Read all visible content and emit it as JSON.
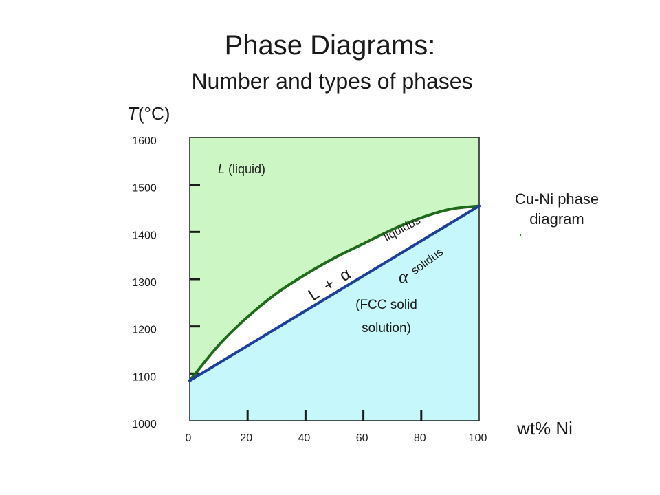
{
  "slide": {
    "title": "Phase Diagrams:",
    "subtitle": "Number and types of phases",
    "y_axis_label_var": "T",
    "y_axis_label_unit": "(°C)",
    "x_axis_label": "wt% Ni",
    "caption": "Cu-Ni phase diagram"
  },
  "phase_labels": {
    "liquid_symbol": "L",
    "liquid_text": "(liquid)",
    "two_phase": "L  +  α",
    "alpha_symbol": "α",
    "solidus": "solidus",
    "liquidus": "liquidus",
    "solid_line1": "(FCC solid",
    "solid_line2": "solution)"
  },
  "chart_data": {
    "type": "line",
    "xlabel": "wt% Ni",
    "ylabel": "T(°C)",
    "xlim": [
      0,
      100
    ],
    "ylim": [
      1000,
      1600
    ],
    "x_ticks": [
      "0",
      "20",
      "40",
      "60",
      "80",
      "100"
    ],
    "y_ticks": [
      "1000",
      "1100",
      "1200",
      "1300",
      "1400",
      "1500",
      "1600"
    ],
    "series": [
      {
        "name": "liquidus",
        "color": "#1e6b1a",
        "x": [
          0,
          10,
          20,
          30,
          40,
          50,
          60,
          70,
          80,
          90,
          100
        ],
        "y": [
          1085,
          1160,
          1220,
          1270,
          1310,
          1345,
          1375,
          1405,
          1430,
          1448,
          1455
        ]
      },
      {
        "name": "solidus",
        "color": "#1c3f9c",
        "x": [
          0,
          100
        ],
        "y": [
          1085,
          1455
        ]
      }
    ],
    "regions": {
      "liquid_color": "#ccf7c4",
      "solid_color": "#c6f7fb",
      "two_phase_color": "#ffffff"
    }
  }
}
